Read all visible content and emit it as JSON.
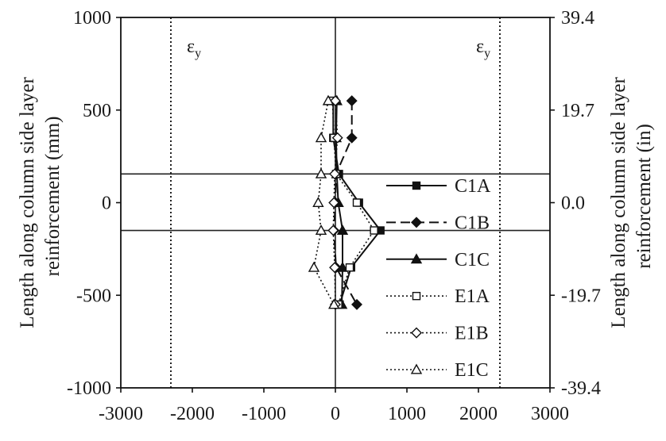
{
  "chart_data": {
    "type": "line",
    "xlabel": "",
    "ylabel": "Length along column side layer reinforcement (mm)",
    "ylabel_lines": [
      "Length along column side layer",
      "reinforcement (mm)"
    ],
    "ylabel_right": "Length along column side layer reinforcement (in)",
    "ylabel_right_lines": [
      "Length along column side layer",
      "reinforcement (in)"
    ],
    "xlim": [
      -3000,
      3000
    ],
    "ylim": [
      -1000,
      1000
    ],
    "x_ticks": [
      -3000,
      -2000,
      -1000,
      0,
      1000,
      2000,
      3000
    ],
    "x_tick_labels": [
      "-3000",
      "-2000",
      "-1000",
      "0",
      "1000",
      "2000",
      "3000"
    ],
    "y_ticks": [
      -1000,
      -500,
      0,
      500,
      1000
    ],
    "y_tick_labels": [
      "-1000",
      "-500",
      "0",
      "500",
      "1000"
    ],
    "y_right_ticks": [
      -1000,
      -500,
      0,
      500,
      1000
    ],
    "y_right_tick_labels": [
      "-39.4",
      "-19.7",
      "0.0",
      "19.7",
      "39.4"
    ],
    "grid": false,
    "legend_position": "right",
    "yield_lines": [
      {
        "x": -2300,
        "label": "ε",
        "sub": "y"
      },
      {
        "x": 2300,
        "label": "ε",
        "sub": "y"
      }
    ],
    "horizontal_lines": [
      155,
      -150
    ],
    "vertical_lines": [
      0
    ],
    "series": [
      {
        "name": "C1A",
        "line": "solid",
        "marker": "square-filled",
        "x": [
          -30,
          -30,
          50,
          330,
          630,
          220,
          60
        ],
        "y": [
          550,
          350,
          155,
          0,
          -150,
          -350,
          -550
        ]
      },
      {
        "name": "C1B",
        "line": "dashed",
        "marker": "diamond-filled",
        "x": [
          230,
          230,
          10,
          0,
          -20,
          10,
          300
        ],
        "y": [
          550,
          350,
          155,
          0,
          -150,
          -350,
          -550
        ]
      },
      {
        "name": "C1C",
        "line": "solid",
        "marker": "triangle-filled",
        "x": [
          20,
          10,
          20,
          40,
          100,
          100,
          90
        ],
        "y": [
          550,
          350,
          155,
          0,
          -150,
          -350,
          -550
        ]
      },
      {
        "name": "E1A",
        "line": "dotted",
        "marker": "square-open",
        "x": [
          -40,
          -20,
          10,
          300,
          540,
          200,
          40
        ],
        "y": [
          550,
          350,
          155,
          0,
          -150,
          -350,
          -550
        ]
      },
      {
        "name": "E1B",
        "line": "dotted",
        "marker": "diamond-open",
        "x": [
          0,
          30,
          -10,
          -20,
          -30,
          -10,
          0
        ],
        "y": [
          550,
          350,
          155,
          0,
          -150,
          -350,
          -550
        ]
      },
      {
        "name": "E1C",
        "line": "dotted",
        "marker": "triangle-open",
        "x": [
          -100,
          -200,
          -200,
          -240,
          -200,
          -300,
          -20
        ],
        "y": [
          550,
          350,
          155,
          0,
          -150,
          -350,
          -550
        ]
      }
    ]
  }
}
